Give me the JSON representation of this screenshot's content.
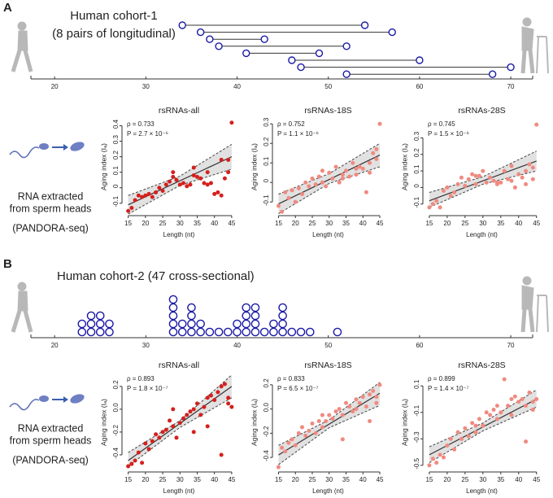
{
  "panels": [
    {
      "label": "A",
      "title_lines": [
        "Human cohort-1",
        "(8 pairs of longitudinal)"
      ],
      "side_text": [
        "RNA extracted",
        "from sperm heads",
        "(PANDORA-seq)"
      ]
    },
    {
      "label": "B",
      "title_lines": [
        "Human cohort-2 (47 cross-sectional)"
      ],
      "side_text": [
        "RNA extracted",
        "from sperm heads",
        "(PANDORA-seq)"
      ]
    }
  ],
  "chart_data": [
    {
      "type": "interval",
      "x_start": [
        34,
        36,
        37,
        38,
        41,
        46,
        47,
        52
      ],
      "x_end": [
        54,
        57,
        43,
        52,
        49,
        60,
        70,
        68
      ],
      "color": "#1a1aa6",
      "xlim": [
        17.4,
        72.4
      ],
      "xticks": [
        20,
        30,
        40,
        50,
        60,
        70
      ]
    },
    {
      "type": "scatter",
      "title": "rsRNAs-all",
      "rho_label": "ρ = 0.733",
      "p_label": "P = 2.7 × 10⁻⁶",
      "x_label": "Length (nt)",
      "y_label": "Aging index (Iₐ)",
      "color": "#d4201e",
      "x": [
        15,
        16,
        17,
        18,
        19,
        20,
        21,
        22,
        23,
        24,
        25,
        26,
        27,
        28,
        29,
        30,
        31,
        32,
        33,
        34,
        35,
        36,
        37,
        38,
        39,
        40,
        41,
        42,
        43,
        44,
        45,
        44,
        42,
        38,
        34,
        28
      ],
      "values": [
        -0.15,
        -0.13,
        -0.08,
        -0.05,
        -0.06,
        -0.05,
        -0.04,
        -0.06,
        -0.03,
        0.0,
        -0.02,
        0.02,
        0.04,
        0.07,
        0.05,
        0.02,
        0.03,
        0.01,
        0.02,
        0.08,
        0.07,
        0.06,
        0.03,
        0.02,
        0.03,
        -0.04,
        -0.03,
        -0.05,
        0.06,
        0.1,
        0.42,
        0.18,
        0.18,
        0.1,
        0.13,
        0.1
      ],
      "fit": {
        "x": [
          15,
          45
        ],
        "y": [
          -0.11,
          0.2
        ]
      },
      "band": {
        "x": [
          15,
          30,
          45
        ],
        "lower": [
          -0.17,
          0.015,
          0.12
        ],
        "upper": [
          -0.05,
          0.075,
          0.28
        ]
      },
      "xlim": [
        13.2,
        46.2
      ],
      "xticks": [
        15,
        20,
        25,
        30,
        35,
        40,
        45
      ],
      "ylim": [
        -0.18,
        0.45
      ],
      "yticks": [
        -0.1,
        0,
        0.1,
        0.2,
        0.3,
        0.4
      ]
    },
    {
      "type": "scatter",
      "title": "rsRNAs-18S",
      "rho_label": "ρ = 0.752",
      "p_label": "P = 1.1 × 10⁻⁶",
      "x_label": "Length (nt)",
      "y_label": "Aging index (Iₐ)",
      "color": "#f08a80",
      "x": [
        15,
        16,
        17,
        18,
        19,
        20,
        21,
        22,
        23,
        24,
        25,
        26,
        27,
        28,
        29,
        30,
        31,
        32,
        33,
        34,
        35,
        36,
        37,
        38,
        39,
        40,
        41,
        42,
        43,
        44,
        45,
        44,
        42,
        38,
        34,
        28
      ],
      "values": [
        -0.12,
        -0.15,
        -0.05,
        -0.08,
        -0.04,
        -0.1,
        -0.03,
        -0.06,
        0.0,
        -0.02,
        0.02,
        -0.01,
        0.03,
        0.0,
        -0.02,
        0.05,
        0.02,
        0.08,
        0.0,
        0.04,
        0.06,
        0.03,
        0.1,
        0.04,
        0.08,
        0.07,
        -0.05,
        0.1,
        0.15,
        0.12,
        0.3,
        0.17,
        0.05,
        0.07,
        0.02,
        0.06
      ],
      "fit": {
        "x": [
          15,
          45
        ],
        "y": [
          -0.11,
          0.14
        ]
      },
      "band": {
        "x": [
          15,
          30,
          45
        ],
        "lower": [
          -0.16,
          -0.005,
          0.08
        ],
        "upper": [
          -0.06,
          0.045,
          0.2
        ]
      },
      "xlim": [
        13.2,
        46.2
      ],
      "xticks": [
        15,
        20,
        25,
        30,
        35,
        40,
        45
      ],
      "ylim": [
        -0.17,
        0.33
      ],
      "yticks": [
        -0.1,
        0,
        0.1,
        0.2,
        0.3
      ]
    },
    {
      "type": "scatter",
      "title": "rsRNAs-28S",
      "rho_label": "ρ = 0.745",
      "p_label": "P = 1.5 × 10⁻⁶",
      "x_label": "Length (nt)",
      "y_label": "Aging index (Iₐ)",
      "color": "#f08a80",
      "x": [
        15,
        16,
        17,
        18,
        19,
        20,
        21,
        22,
        23,
        24,
        25,
        26,
        27,
        28,
        29,
        30,
        31,
        32,
        33,
        34,
        35,
        36,
        37,
        38,
        39,
        40,
        41,
        42,
        43,
        44,
        45,
        44,
        42,
        38,
        34,
        28
      ],
      "values": [
        -0.12,
        -0.1,
        -0.08,
        -0.12,
        -0.02,
        0.0,
        -0.05,
        -0.03,
        0.02,
        0.06,
        0.01,
        0.05,
        0.08,
        0.02,
        0.07,
        0.1,
        0.03,
        0.06,
        0.04,
        0.02,
        0.03,
        0.1,
        0.05,
        0.13,
        0.0,
        0.08,
        0.06,
        0.1,
        0.14,
        0.12,
        0.38,
        0.05,
        0.02,
        0.04,
        0.03,
        0.07
      ],
      "fit": {
        "x": [
          15,
          45
        ],
        "y": [
          -0.08,
          0.16
        ]
      },
      "band": {
        "x": [
          15,
          30,
          45
        ],
        "lower": [
          -0.12,
          0.02,
          0.1
        ],
        "upper": [
          -0.03,
          0.065,
          0.22
        ]
      },
      "xlim": [
        13.2,
        46.2
      ],
      "xticks": [
        15,
        20,
        25,
        30,
        35,
        40,
        45
      ],
      "ylim": [
        -0.17,
        0.42
      ],
      "yticks": [
        -0.1,
        0,
        0.1,
        0.2,
        0.3
      ]
    },
    {
      "type": "dotplot",
      "x": [
        23,
        24,
        25,
        26,
        33,
        34,
        35,
        36,
        37,
        38,
        39,
        40,
        41,
        42,
        43,
        44,
        45,
        46,
        47,
        48,
        51
      ],
      "values": [
        2,
        3,
        3,
        2,
        5,
        2,
        4,
        2,
        1,
        1,
        1,
        2,
        4,
        4,
        1,
        2,
        4,
        1,
        1,
        1,
        1
      ],
      "color": "#1a1aa6",
      "xlim": [
        17.4,
        72.4
      ],
      "xticks": [
        20,
        30,
        40,
        50,
        60,
        70
      ]
    },
    {
      "type": "scatter",
      "title": "rsRNAs-all",
      "rho_label": "ρ = 0.893",
      "p_label": "P = 1.8 × 10⁻⁷",
      "x_label": "Length (nt)",
      "y_label": "Aging index (Iₐ)",
      "color": "#d4201e",
      "x": [
        15,
        16,
        17,
        18,
        19,
        20,
        21,
        22,
        23,
        24,
        25,
        26,
        27,
        28,
        29,
        30,
        31,
        32,
        33,
        34,
        35,
        36,
        37,
        38,
        39,
        40,
        41,
        42,
        43,
        44,
        45,
        44,
        42,
        38,
        34,
        28
      ],
      "values": [
        -0.5,
        -0.48,
        -0.45,
        -0.38,
        -0.47,
        -0.3,
        -0.35,
        -0.28,
        -0.22,
        -0.25,
        -0.2,
        -0.18,
        -0.1,
        -0.15,
        -0.25,
        -0.12,
        -0.08,
        -0.05,
        -0.02,
        0.0,
        0.05,
        -0.05,
        0.02,
        0.1,
        0.12,
        0.08,
        0.15,
        0.2,
        0.22,
        0.1,
        0.02,
        0.05,
        -0.4,
        -0.15,
        -0.2,
        0.0
      ],
      "fit": {
        "x": [
          15,
          45
        ],
        "y": [
          -0.45,
          0.2
        ]
      },
      "band": {
        "x": [
          15,
          30,
          45
        ],
        "lower": [
          -0.5,
          -0.16,
          0.1
        ],
        "upper": [
          -0.38,
          -0.1,
          0.3
        ]
      },
      "xlim": [
        13.2,
        46.2
      ],
      "xticks": [
        15,
        20,
        25,
        30,
        35,
        40,
        45
      ],
      "ylim": [
        -0.55,
        0.32
      ],
      "yticks": [
        -0.4,
        -0.2,
        {
          "value": 0,
          "label": "0.0"
        },
        0.2
      ]
    },
    {
      "type": "scatter",
      "title": "rsRNAs-18S",
      "rho_label": "ρ = 0.833",
      "p_label": "P = 6.5 × 10⁻⁷",
      "x_label": "Length (nt)",
      "y_label": "Aging index (Iₐ)",
      "color": "#f08a80",
      "x": [
        15,
        16,
        17,
        18,
        19,
        20,
        21,
        22,
        23,
        24,
        25,
        26,
        27,
        28,
        29,
        30,
        31,
        32,
        33,
        34,
        35,
        36,
        37,
        38,
        39,
        40,
        41,
        42,
        43,
        44,
        45,
        44,
        42,
        38,
        34,
        28
      ],
      "values": [
        -0.48,
        -0.32,
        -0.35,
        -0.28,
        -0.25,
        -0.3,
        -0.2,
        -0.15,
        -0.22,
        -0.18,
        -0.12,
        -0.2,
        -0.1,
        -0.15,
        -0.1,
        -0.05,
        -0.08,
        -0.02,
        0.0,
        -0.05,
        0.05,
        0.02,
        -0.02,
        0.08,
        0.05,
        0.1,
        0.02,
        0.12,
        0.15,
        0.05,
        0.2,
        0.1,
        -0.1,
        0.0,
        -0.25,
        -0.05
      ],
      "fit": {
        "x": [
          15,
          45
        ],
        "y": [
          -0.38,
          0.13
        ]
      },
      "band": {
        "x": [
          15,
          30,
          45
        ],
        "lower": [
          -0.46,
          -0.155,
          0.03
        ],
        "upper": [
          -0.3,
          -0.09,
          0.22
        ]
      },
      "xlim": [
        13.2,
        46.2
      ],
      "xticks": [
        15,
        20,
        25,
        30,
        35,
        40,
        45
      ],
      "ylim": [
        -0.52,
        0.3
      ],
      "yticks": [
        -0.4,
        -0.2,
        {
          "value": 0,
          "label": "0.0"
        },
        0.2
      ]
    },
    {
      "type": "scatter",
      "title": "rsRNAs-28S",
      "rho_label": "ρ = 0.899",
      "p_label": "P = 1.4 × 10⁻⁷",
      "x_label": "Length (nt)",
      "y_label": "Aging index (Iₐ)",
      "color": "#f08a80",
      "x": [
        15,
        16,
        17,
        18,
        19,
        20,
        21,
        22,
        23,
        24,
        25,
        26,
        27,
        28,
        29,
        30,
        31,
        32,
        33,
        34,
        35,
        36,
        37,
        38,
        39,
        40,
        41,
        42,
        43,
        44,
        45,
        44,
        42,
        38,
        34,
        28
      ],
      "values": [
        -0.5,
        -0.45,
        -0.48,
        -0.42,
        -0.44,
        -0.35,
        -0.3,
        -0.38,
        -0.25,
        -0.3,
        -0.22,
        -0.28,
        -0.18,
        -0.2,
        -0.15,
        -0.2,
        -0.1,
        -0.12,
        -0.08,
        -0.05,
        -0.1,
        0.15,
        -0.05,
        0.0,
        0.02,
        -0.02,
        0.0,
        -0.05,
        0.05,
        -0.02,
        0.0,
        -0.08,
        -0.32,
        -0.12,
        -0.15,
        -0.25
      ],
      "fit": {
        "x": [
          15,
          45
        ],
        "y": [
          -0.42,
          0.0
        ]
      },
      "band": {
        "x": [
          15,
          30,
          45
        ],
        "lower": [
          -0.48,
          -0.24,
          -0.06
        ],
        "upper": [
          -0.36,
          -0.18,
          0.07
        ]
      },
      "xlim": [
        13.2,
        46.2
      ],
      "xticks": [
        15,
        20,
        25,
        30,
        35,
        40,
        45
      ],
      "ylim": [
        -0.55,
        0.2
      ],
      "yticks": [
        -0.5,
        -0.3,
        -0.1,
        0.1
      ]
    }
  ]
}
